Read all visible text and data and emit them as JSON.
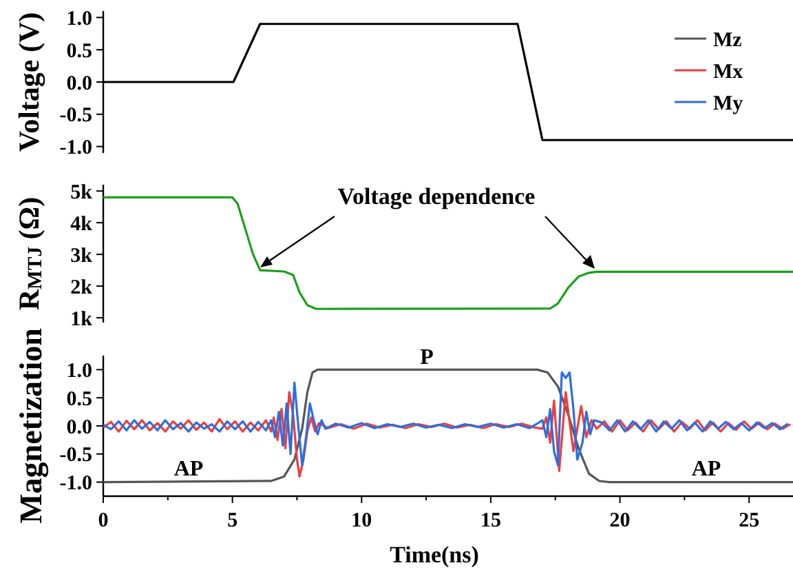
{
  "chart_data": [
    {
      "type": "line",
      "ylabel": "Voltage (V)",
      "xlim": [
        0,
        26.7
      ],
      "ylim": [
        -1.1,
        1.1
      ],
      "tick_labels": "y",
      "yticks": [
        {
          "value": -1,
          "label": "-1.0"
        },
        {
          "value": -0.5,
          "label": "-0.5"
        },
        {
          "value": 0,
          "label": "0.0"
        },
        {
          "value": 0.5,
          "label": "0.5"
        },
        {
          "value": 1,
          "label": "1.0"
        }
      ],
      "series": [
        {
          "color": "#000000",
          "x": [
            0,
            5.04,
            6.07,
            16.04,
            17.0,
            26.7
          ],
          "values": [
            0,
            0,
            0.9,
            0.9,
            -0.9,
            -0.9
          ]
        }
      ]
    },
    {
      "type": "line",
      "ylabel": "R$_{MTJ}$ (Ω)",
      "xlim": [
        0,
        26.7
      ],
      "ylim": [
        850,
        5200
      ],
      "tick_labels": "y",
      "yticks": [
        {
          "value": 1000,
          "label": "1k"
        },
        {
          "value": 2000,
          "label": "2k"
        },
        {
          "value": 3000,
          "label": "3k"
        },
        {
          "value": 4000,
          "label": "4k"
        },
        {
          "value": 5000,
          "label": "5k"
        }
      ],
      "annotations": [
        "Voltage dependence"
      ],
      "series": [
        {
          "color": "#1aa01a",
          "x": [
            0,
            5.0,
            5.2,
            5.5,
            5.8,
            6.07,
            7.0,
            7.35,
            7.6,
            7.9,
            8.24,
            17.3,
            17.6,
            18.0,
            18.4,
            18.8,
            19.1,
            26.7
          ],
          "values": [
            4800,
            4800,
            4600,
            3800,
            3000,
            2500,
            2460,
            2350,
            1800,
            1400,
            1280,
            1290,
            1450,
            1950,
            2300,
            2420,
            2450,
            2450
          ]
        }
      ]
    },
    {
      "type": "line",
      "ylabel": "Magnetization",
      "xlabel": "Time(ns)",
      "xlim": [
        0,
        26.7
      ],
      "ylim": [
        -1.25,
        1.25
      ],
      "legend": "top right",
      "xticks": [
        0,
        {
          "value": 2.5,
          "label": null
        },
        5,
        {
          "value": 7.5,
          "label": null
        },
        10,
        {
          "value": 12.5,
          "label": null
        },
        15,
        {
          "value": 17.5,
          "label": null
        },
        20,
        {
          "value": 22.5,
          "label": null
        },
        25
      ],
      "yticks": [
        {
          "value": -1,
          "label": "-1.0"
        },
        {
          "value": -0.5,
          "label": "-0.5"
        },
        {
          "value": 0,
          "label": "0.0"
        },
        {
          "value": 0.5,
          "label": "0.5"
        },
        {
          "value": 1,
          "label": "1.0"
        }
      ],
      "annotations": [
        "P",
        "AP",
        "AP"
      ],
      "series": [
        {
          "name": "Mz",
          "color": "#555555",
          "x": [
            0,
            6.5,
            7.0,
            7.4,
            7.7,
            7.9,
            8.1,
            8.3,
            16.8,
            17.2,
            17.6,
            18.0,
            18.4,
            18.8,
            19.2,
            19.6,
            26.7
          ],
          "values": [
            -1,
            -0.98,
            -0.9,
            -0.6,
            -0.05,
            0.6,
            0.95,
            1,
            1,
            0.95,
            0.7,
            0.2,
            -0.4,
            -0.85,
            -0.98,
            -1,
            -1
          ]
        },
        {
          "name": "Mx",
          "color": "#f03c3c",
          "x": [
            0,
            0.3,
            0.6,
            0.9,
            1.2,
            1.5,
            1.8,
            2.1,
            2.4,
            2.7,
            3.0,
            3.3,
            3.6,
            3.9,
            4.2,
            4.5,
            4.8,
            5.1,
            5.4,
            5.7,
            6.0,
            6.3,
            6.5,
            6.6,
            6.75,
            6.9,
            7.05,
            7.2,
            7.35,
            7.5,
            7.6,
            7.75,
            7.9,
            8.05,
            8.2,
            8.35,
            8.7,
            9.2,
            9.7,
            10.2,
            10.7,
            11.2,
            11.7,
            12.2,
            12.7,
            13.2,
            13.7,
            14.2,
            14.7,
            15.2,
            15.7,
            16.2,
            16.7,
            17.0,
            17.15,
            17.3,
            17.45,
            17.65,
            17.9,
            18.2,
            18.5,
            18.7,
            18.9,
            19.1,
            19.4,
            19.7,
            20.0,
            20.3,
            20.6,
            20.9,
            21.2,
            21.5,
            21.8,
            22.1,
            22.4,
            22.7,
            23.0,
            23.3,
            23.6,
            23.9,
            24.2,
            24.5,
            24.8,
            25.1,
            25.4,
            25.7,
            26.0,
            26.3,
            26.6
          ],
          "values": [
            -0.03,
            0.07,
            -0.1,
            0.09,
            -0.06,
            0.1,
            -0.08,
            0.05,
            -0.1,
            0.08,
            -0.05,
            0.1,
            -0.07,
            0.06,
            -0.1,
            0.12,
            -0.06,
            0.08,
            -0.1,
            0.06,
            -0.08,
            0.1,
            -0.1,
            0.15,
            -0.25,
            0.3,
            -0.4,
            0.6,
            0.2,
            -0.6,
            -0.9,
            -0.6,
            -0.1,
            0.15,
            -0.1,
            0.05,
            -0.04,
            0.03,
            -0.05,
            0.04,
            -0.03,
            0.02,
            -0.04,
            0.03,
            -0.02,
            0.04,
            -0.03,
            0.02,
            -0.04,
            0.03,
            -0.02,
            0.04,
            -0.03,
            -0.05,
            0.15,
            -0.3,
            0.45,
            -0.8,
            0.6,
            -0.45,
            0.35,
            -0.2,
            0.1,
            -0.05,
            0.08,
            -0.1,
            0.1,
            -0.08,
            0.06,
            -0.1,
            0.1,
            -0.06,
            0.08,
            -0.1,
            0.07,
            -0.05,
            0.1,
            -0.08,
            0.06,
            -0.1,
            0.05,
            -0.07,
            0.08,
            -0.05,
            0.06,
            -0.06,
            0.04,
            -0.05,
            0.03
          ]
        },
        {
          "name": "My",
          "color": "#2a6fe0",
          "x": [
            0,
            0.3,
            0.6,
            0.9,
            1.2,
            1.5,
            1.8,
            2.1,
            2.4,
            2.7,
            3.0,
            3.3,
            3.6,
            3.9,
            4.2,
            4.5,
            4.8,
            5.1,
            5.4,
            5.7,
            6.0,
            6.3,
            6.5,
            6.65,
            6.8,
            6.95,
            7.1,
            7.25,
            7.4,
            7.55,
            7.7,
            7.85,
            8.0,
            8.15,
            8.3,
            8.45,
            8.6,
            9.0,
            9.5,
            10.0,
            10.5,
            11.0,
            11.5,
            12.0,
            12.5,
            13.0,
            13.5,
            14.0,
            14.5,
            15.0,
            15.5,
            16.0,
            16.5,
            16.8,
            17.0,
            17.15,
            17.3,
            17.45,
            17.6,
            17.75,
            17.9,
            18.05,
            18.2,
            18.35,
            18.55,
            18.7,
            18.85,
            19.0,
            19.3,
            19.6,
            19.9,
            20.2,
            20.5,
            20.8,
            21.1,
            21.4,
            21.7,
            22.0,
            22.3,
            22.6,
            22.9,
            23.2,
            23.5,
            23.8,
            24.1,
            24.4,
            24.7,
            25.0,
            25.3,
            25.6,
            25.9,
            26.2,
            26.5
          ],
          "values": [
            0.02,
            -0.06,
            0.08,
            -0.08,
            0.1,
            -0.05,
            0.07,
            -0.08,
            0.1,
            -0.06,
            0.05,
            -0.1,
            0.06,
            -0.05,
            0.03,
            -0.1,
            0.08,
            -0.06,
            0.08,
            -0.1,
            0.07,
            -0.08,
            0.1,
            -0.2,
            0.25,
            -0.35,
            0.4,
            -0.5,
            0.77,
            0.0,
            -0.7,
            -0.2,
            0.4,
            0.1,
            -0.15,
            0.1,
            -0.05,
            0.04,
            -0.03,
            0.05,
            -0.04,
            0.03,
            -0.02,
            0.04,
            -0.03,
            0.02,
            -0.04,
            0.03,
            -0.02,
            0.04,
            -0.03,
            0.03,
            -0.04,
            0.04,
            0.1,
            -0.2,
            0.3,
            -0.45,
            -0.7,
            0.95,
            0.85,
            0.95,
            0.3,
            -0.6,
            -0.3,
            0.25,
            -0.15,
            0.1,
            0.06,
            -0.08,
            0.1,
            -0.1,
            0.08,
            -0.06,
            0.1,
            -0.1,
            0.08,
            -0.05,
            0.1,
            -0.08,
            0.06,
            -0.1,
            0.08,
            -0.05,
            0.07,
            -0.06,
            0.05,
            -0.08,
            0.06,
            -0.04,
            0.05,
            -0.06,
            0.04
          ]
        }
      ]
    }
  ]
}
